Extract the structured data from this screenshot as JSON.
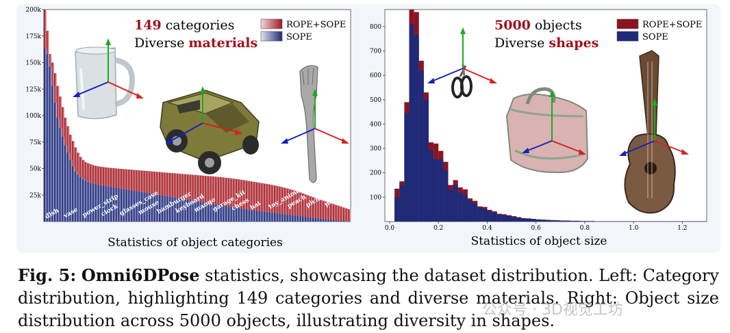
{
  "left": {
    "headline_num": "149",
    "headline_rest": " categories",
    "sub_pre": "Diverse ",
    "sub_em": "materials",
    "legend": [
      "ROPE+SOPE",
      "SOPE"
    ],
    "caption": "Statistics of object categories",
    "colors": {
      "accent": "#a0101c",
      "sope": "#1f2a78",
      "rope": "#9b1b24"
    },
    "chart_data": {
      "type": "bar",
      "title": "Statistics of object categories",
      "xlabel": "",
      "ylabel": "",
      "ylim": [
        0,
        200000
      ],
      "ytick_labels": [
        "200k",
        "175k",
        "150k",
        "125k",
        "100k",
        "75k",
        "50k",
        "25k"
      ],
      "ytick_values": [
        200000,
        175000,
        150000,
        125000,
        100000,
        75000,
        50000,
        25000
      ],
      "category_labels": [
        "dish",
        "vase",
        "power_strip",
        "clock",
        "glasses_case",
        "mouse",
        "hamburger",
        "keyboard",
        "mango",
        "garage_kit",
        "chess",
        "hat",
        "toy_animal",
        "peach",
        "picnic_basket",
        "pillow"
      ],
      "series": [
        {
          "name": "ROPE+SOPE",
          "values": [
            200000,
            180000,
            158000,
            150000,
            140000,
            128000,
            118000,
            108000,
            98000,
            90000,
            82000,
            76000,
            70000,
            65000,
            61000,
            58000,
            56000,
            55000,
            54000,
            53200,
            52600,
            52100,
            51700,
            51400,
            51100,
            50800,
            50600,
            50300,
            50100,
            49900,
            49700,
            49500,
            49300,
            49100,
            48900,
            48700,
            48500,
            48300,
            48100,
            47900,
            47700,
            47500,
            47300,
            47100,
            46900,
            46700,
            46500,
            46300,
            46100,
            45900,
            45700,
            45500,
            45300,
            45100,
            44900,
            44700,
            44500,
            44300,
            44100,
            43900,
            43700,
            43500,
            43300,
            43100,
            42900,
            42700,
            42500,
            42300,
            42100,
            41900,
            41600,
            41300,
            41000,
            40700,
            40400,
            40100,
            39800,
            39400,
            39000,
            38600,
            38200,
            37800,
            37400,
            37000,
            36600,
            36200,
            35800,
            35400,
            35000,
            34500,
            34000,
            33500,
            33000,
            32400,
            31800,
            31200,
            30500,
            29800,
            29000,
            28200,
            27400,
            26500,
            25600,
            24700,
            23800,
            22900,
            22000,
            21200,
            20400,
            19600,
            18800,
            18000,
            17200,
            16400,
            15600,
            14800,
            14000,
            13200,
            12400,
            11600
          ]
        },
        {
          "name": "SOPE",
          "values": [
            163000,
            158000,
            146000,
            128000,
            112000,
            98000,
            88000,
            80000,
            72000,
            65000,
            58000,
            52000,
            47000,
            44000,
            42000,
            40000,
            38500,
            37500,
            36500,
            35800,
            35200,
            34700,
            34200,
            33800,
            33400,
            33000,
            32600,
            32200,
            31800,
            31400,
            31000,
            30600,
            30200,
            29800,
            29400,
            29000,
            28600,
            28200,
            27800,
            27400,
            27000,
            26600,
            26200,
            25800,
            25400,
            25000,
            24600,
            24200,
            23800,
            23400,
            23000,
            22600,
            22200,
            21800,
            21400,
            21000,
            20600,
            20200,
            19800,
            19400,
            19000,
            18600,
            18200,
            17800,
            17400,
            17000,
            16600,
            16200,
            15800,
            15400,
            15000,
            14600,
            14200,
            13800,
            13400,
            13000,
            12600,
            12200,
            11800,
            11400,
            11000,
            10700,
            10400,
            10100,
            9800,
            9500,
            9200,
            8900,
            8600,
            8300,
            8000,
            7700,
            7400,
            7100,
            6800,
            6500,
            6200,
            5900,
            5600,
            5300,
            5000,
            4700,
            4400,
            4100,
            3800,
            3500,
            3200,
            2900,
            2600,
            2300,
            2000,
            1800,
            1600,
            1400,
            1200,
            1000,
            800,
            600,
            400,
            200
          ]
        }
      ]
    }
  },
  "right": {
    "headline_num": "5000",
    "headline_rest": " objects",
    "sub_pre": "Diverse ",
    "sub_em": "shapes",
    "legend": [
      "ROPE+SOPE",
      "SOPE"
    ],
    "caption": "Statistics of object size",
    "chart_data": {
      "type": "bar",
      "title": "Statistics of object size",
      "xlabel": "",
      "ylabel": "",
      "xlim": [
        0,
        1.3
      ],
      "ylim": [
        0,
        870
      ],
      "xtick_labels": [
        "0.0",
        "0.2",
        "0.4",
        "0.6",
        "0.8",
        "1.0",
        "1.2"
      ],
      "xtick_values": [
        0,
        0.2,
        0.4,
        0.6,
        0.8,
        1.0,
        1.2
      ],
      "ytick_labels": [
        "100",
        "200",
        "300",
        "400",
        "500",
        "600",
        "700",
        "800"
      ],
      "ytick_values": [
        100,
        200,
        300,
        400,
        500,
        600,
        700,
        800
      ],
      "bin_width": 0.02,
      "series": [
        {
          "name": "ROPE+SOPE",
          "values": [
            0,
            135,
            165,
            490,
            870,
            860,
            660,
            530,
            325,
            320,
            290,
            245,
            150,
            170,
            140,
            132,
            95,
            85,
            62,
            60,
            48,
            42,
            32,
            30,
            26,
            22,
            18,
            14,
            13,
            11,
            9,
            8,
            7,
            6,
            5,
            4,
            4,
            3,
            3,
            2,
            2,
            2,
            1,
            1,
            1,
            1,
            1,
            1,
            1,
            1,
            1,
            1,
            1,
            1,
            1,
            1,
            1,
            1,
            1,
            1,
            1,
            1,
            1,
            1,
            1
          ]
        },
        {
          "name": "SOPE",
          "values": [
            0,
            100,
            150,
            445,
            810,
            765,
            620,
            500,
            290,
            255,
            255,
            210,
            130,
            150,
            120,
            110,
            85,
            75,
            58,
            52,
            42,
            38,
            28,
            26,
            22,
            19,
            16,
            12,
            12,
            10,
            8,
            7,
            6,
            5,
            5,
            4,
            4,
            3,
            3,
            2,
            2,
            2,
            1,
            1,
            1,
            1,
            1,
            1,
            1,
            1,
            1,
            1,
            1,
            1,
            1,
            1,
            1,
            1,
            1,
            1,
            1,
            1,
            1,
            1,
            1
          ]
        }
      ]
    }
  },
  "caption": {
    "label": "Fig. 5:",
    "name": "Omni6DPose",
    "text": " statistics, showcasing the dataset distribution. Left: Category distribution, highlighting 149 categories and diverse materials. Right: Object size distribution across 5000 objects, illustrating diversity in shapes."
  },
  "watermark": "公众号 · 3D视觉工坊"
}
